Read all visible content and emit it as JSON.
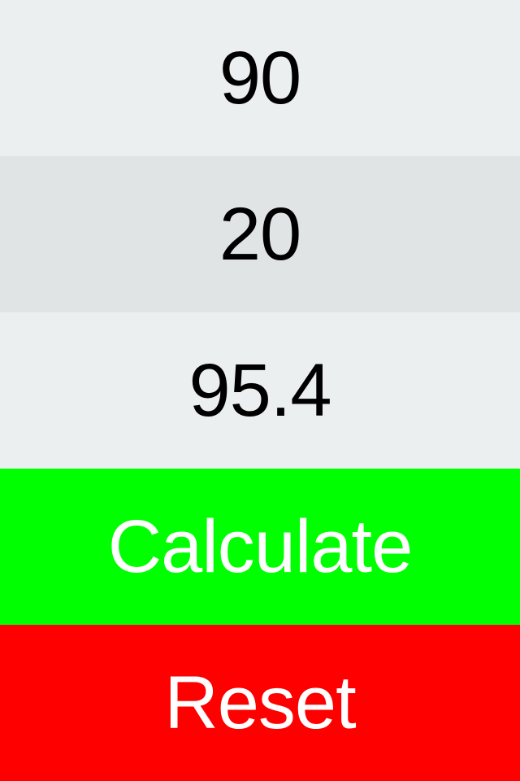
{
  "fields": {
    "first_value": "90",
    "second_value": "20",
    "result_value": "95.4"
  },
  "buttons": {
    "calculate_label": "Calculate",
    "reset_label": "Reset"
  },
  "colors": {
    "field_light_bg": "#ebeff0",
    "field_dark_bg": "#e0e4e5",
    "calculate_bg": "#00ff00",
    "reset_bg": "#ff0000",
    "button_text": "#ffffff",
    "field_text": "#000000"
  }
}
